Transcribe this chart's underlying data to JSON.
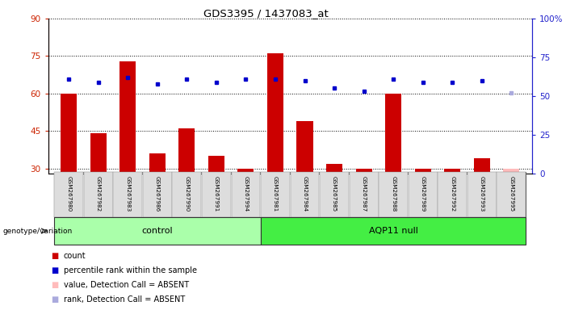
{
  "title": "GDS3395 / 1437083_at",
  "samples": [
    "GSM267980",
    "GSM267982",
    "GSM267983",
    "GSM267986",
    "GSM267990",
    "GSM267991",
    "GSM267994",
    "GSM267981",
    "GSM267984",
    "GSM267985",
    "GSM267987",
    "GSM267988",
    "GSM267989",
    "GSM267992",
    "GSM267993",
    "GSM267995"
  ],
  "n_control": 7,
  "n_aqp11": 9,
  "count_values": [
    60,
    44,
    73,
    36,
    46,
    35,
    30,
    76,
    49,
    32,
    30,
    60,
    30,
    30,
    34,
    30
  ],
  "rank_values": [
    61,
    59,
    62,
    58,
    61,
    59,
    61,
    61,
    60,
    55,
    53,
    61,
    59,
    59,
    60,
    52
  ],
  "absent_bar_flags": [
    false,
    false,
    false,
    false,
    false,
    false,
    false,
    false,
    false,
    false,
    false,
    false,
    false,
    false,
    false,
    true
  ],
  "absent_dot_flags": [
    false,
    false,
    false,
    false,
    false,
    false,
    false,
    false,
    false,
    false,
    false,
    false,
    false,
    false,
    false,
    true
  ],
  "ylim_left": [
    28,
    90
  ],
  "ylim_right": [
    0,
    100
  ],
  "yticks_left": [
    30,
    45,
    60,
    75,
    90
  ],
  "yticks_right": [
    0,
    25,
    50,
    75,
    100
  ],
  "bar_color": "#cc0000",
  "bar_absent_color": "#ffbbbb",
  "dot_color": "#0000cc",
  "dot_absent_color": "#aaaadd",
  "tick_color_left": "#cc2200",
  "tick_color_right": "#2222cc",
  "control_bg": "#aaffaa",
  "aqp11_bg": "#44ee44",
  "sample_bg": "#dddddd",
  "legend_items": [
    {
      "color": "#cc0000",
      "label": "count"
    },
    {
      "color": "#0000cc",
      "label": "percentile rank within the sample"
    },
    {
      "color": "#ffbbbb",
      "label": "value, Detection Call = ABSENT"
    },
    {
      "color": "#aaaadd",
      "label": "rank, Detection Call = ABSENT"
    }
  ]
}
